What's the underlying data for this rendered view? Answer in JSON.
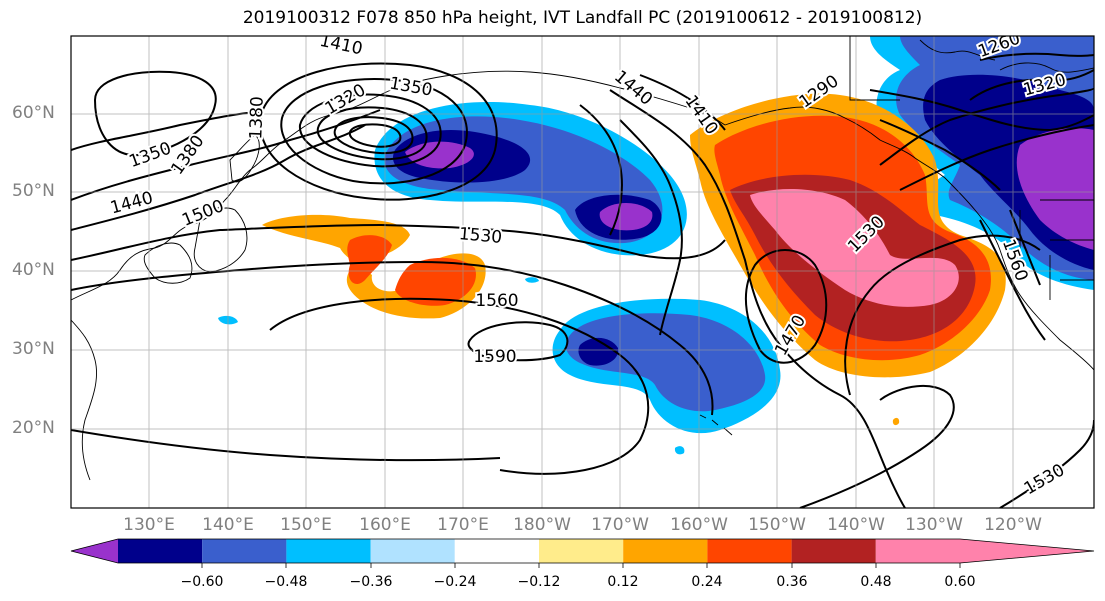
{
  "title": "2019100312 F078 850 hPa height, IVT Landfall PC (2019100612 - 2019100812)",
  "lat_labels": [
    "60°N",
    "50°N",
    "40°N",
    "30°N",
    "20°N"
  ],
  "lon_labels": [
    "130°E",
    "140°E",
    "150°E",
    "160°E",
    "170°E",
    "180°W",
    "170°W",
    "160°W",
    "150°W",
    "140°W",
    "130°W",
    "120°W"
  ],
  "contour_labels": [
    "1410",
    "1350",
    "1320",
    "1380",
    "1440",
    "1410",
    "1290",
    "1260",
    "1320",
    "1350",
    "1380",
    "1440",
    "1500",
    "1530",
    "1560",
    "1590",
    "1470",
    "1530",
    "1530",
    "1560"
  ],
  "colorbar": {
    "ticks": [
      "−0.60",
      "−0.48",
      "−0.36",
      "−0.24",
      "−0.12",
      "0.12",
      "0.24",
      "0.36",
      "0.48",
      "0.60"
    ],
    "colors": [
      "#9932cc",
      "#00008b",
      "#3a5fcd",
      "#00bfff",
      "#b0e2ff",
      "#ffffff",
      "#ffec8b",
      "#ffa500",
      "#ff4500",
      "#b22222",
      "#ff82ab"
    ]
  }
}
